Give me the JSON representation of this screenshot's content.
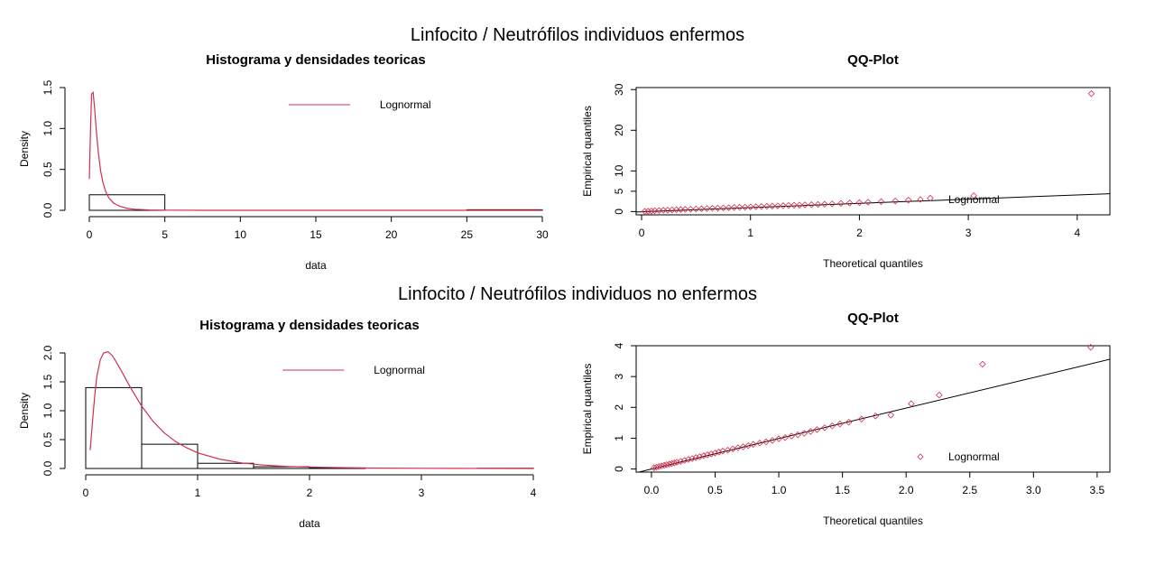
{
  "figure": {
    "suptitle_top": "Linfocito / Neutrófilos individuos enfermos",
    "suptitle_bottom": "Linfocito / Neutrófilos individuos no enfermos",
    "colors": {
      "density": "#d03050",
      "qq_points": "#d03050",
      "axes": "#000000",
      "background": "#ffffff"
    }
  },
  "chart_data": [
    {
      "id": "hist_enfermos",
      "type": "bar",
      "title": "Histograma y densidades teoricas",
      "xlabel": "data",
      "ylabel": "Density",
      "xlim": [
        0,
        30
      ],
      "ylim": [
        0,
        1.5
      ],
      "xticks": [
        0,
        5,
        10,
        15,
        20,
        25,
        30
      ],
      "yticks": [
        0.0,
        0.5,
        1.0,
        1.5
      ],
      "ytick_labels": [
        "0.0",
        "0.5",
        "1.0",
        "1.5"
      ],
      "bins": [
        {
          "x0": 0,
          "x1": 5,
          "density": 0.19
        },
        {
          "x0": 5,
          "x1": 10,
          "density": 0.0
        },
        {
          "x0": 10,
          "x1": 15,
          "density": 0.0
        },
        {
          "x0": 15,
          "x1": 20,
          "density": 0.0
        },
        {
          "x0": 20,
          "x1": 25,
          "density": 0.0
        },
        {
          "x0": 25,
          "x1": 30,
          "density": 0.007
        }
      ],
      "density_curve": {
        "name": "Lognormal",
        "x": [
          0.0,
          0.08,
          0.15,
          0.25,
          0.35,
          0.45,
          0.6,
          0.75,
          0.9,
          1.1,
          1.3,
          1.6,
          2.0,
          2.5,
          3.0,
          4.0,
          5.0,
          8.0,
          12.0,
          20.0,
          30.0
        ],
        "y": [
          0.38,
          1.0,
          1.42,
          1.44,
          1.25,
          1.0,
          0.7,
          0.48,
          0.34,
          0.22,
          0.15,
          0.09,
          0.05,
          0.025,
          0.013,
          0.005,
          0.002,
          0.0003,
          0.0,
          0.0,
          0.0
        ]
      },
      "legend": {
        "entries": [
          "Lognormal"
        ],
        "position": "top-right"
      }
    },
    {
      "id": "qq_enfermos",
      "type": "scatter",
      "title": "QQ-Plot",
      "xlabel": "Theoretical quantiles",
      "ylabel": "Empirical quantiles",
      "xlim": [
        -0.05,
        4.3
      ],
      "ylim": [
        -0.8,
        30.5
      ],
      "xticks": [
        0,
        1,
        2,
        3,
        4
      ],
      "yticks": [
        0,
        5,
        10,
        20,
        30
      ],
      "line": {
        "x": [
          -0.05,
          4.3
        ],
        "y": [
          -0.1,
          4.4
        ]
      },
      "points": {
        "x": [
          0.03,
          0.06,
          0.09,
          0.12,
          0.16,
          0.2,
          0.24,
          0.28,
          0.32,
          0.36,
          0.4,
          0.45,
          0.5,
          0.55,
          0.6,
          0.65,
          0.7,
          0.75,
          0.8,
          0.85,
          0.9,
          0.95,
          1.0,
          1.05,
          1.1,
          1.15,
          1.2,
          1.25,
          1.3,
          1.35,
          1.4,
          1.45,
          1.5,
          1.56,
          1.62,
          1.68,
          1.75,
          1.83,
          1.91,
          2.0,
          2.08,
          2.2,
          2.33,
          2.45,
          2.65,
          3.05,
          4.13
        ],
        "y": [
          0.05,
          0.1,
          0.15,
          0.2,
          0.25,
          0.3,
          0.35,
          0.4,
          0.45,
          0.5,
          0.55,
          0.6,
          0.65,
          0.7,
          0.75,
          0.8,
          0.85,
          0.9,
          0.95,
          1.0,
          1.05,
          1.1,
          1.15,
          1.2,
          1.25,
          1.3,
          1.35,
          1.4,
          1.45,
          1.5,
          1.55,
          1.6,
          1.65,
          1.7,
          1.75,
          1.8,
          1.9,
          2.0,
          2.1,
          2.2,
          2.3,
          2.45,
          2.6,
          2.8,
          3.3,
          3.9,
          29.0
        ]
      },
      "legend": {
        "entries": [
          "Lognormal"
        ],
        "position": "bottom-right"
      }
    },
    {
      "id": "hist_no_enfermos",
      "type": "bar",
      "title": "Histograma y densidades teoricas",
      "xlabel": "data",
      "ylabel": "Density",
      "xlim": [
        0,
        4
      ],
      "ylim": [
        0,
        2.0
      ],
      "xticks": [
        0,
        1,
        2,
        3,
        4
      ],
      "yticks": [
        0.0,
        0.5,
        1.0,
        1.5,
        2.0
      ],
      "ytick_labels": [
        "0.0",
        "0.5",
        "1.0",
        "1.5",
        "2.0"
      ],
      "bins": [
        {
          "x0": 0,
          "x1": 0.5,
          "density": 1.4
        },
        {
          "x0": 0.5,
          "x1": 1.0,
          "density": 0.42
        },
        {
          "x0": 1.0,
          "x1": 1.5,
          "density": 0.09
        },
        {
          "x0": 1.5,
          "x1": 2.0,
          "density": 0.03
        },
        {
          "x0": 2.0,
          "x1": 2.5,
          "density": 0.01
        },
        {
          "x0": 2.5,
          "x1": 3.0,
          "density": 0.0
        },
        {
          "x0": 3.0,
          "x1": 3.5,
          "density": 0.0
        },
        {
          "x0": 3.5,
          "x1": 4.0,
          "density": 0.004
        }
      ],
      "density_curve": {
        "name": "Lognormal",
        "x": [
          0.04,
          0.06,
          0.08,
          0.1,
          0.13,
          0.16,
          0.2,
          0.24,
          0.28,
          0.33,
          0.4,
          0.5,
          0.6,
          0.7,
          0.8,
          0.9,
          1.0,
          1.2,
          1.4,
          1.6,
          1.8,
          2.0,
          2.5,
          3.0,
          3.5,
          4.0
        ],
        "y": [
          0.32,
          0.8,
          1.25,
          1.6,
          1.88,
          2.0,
          2.02,
          1.95,
          1.82,
          1.65,
          1.4,
          1.08,
          0.82,
          0.62,
          0.47,
          0.36,
          0.27,
          0.16,
          0.095,
          0.058,
          0.036,
          0.023,
          0.008,
          0.003,
          0.001,
          0.0
        ]
      },
      "legend": {
        "entries": [
          "Lognormal"
        ],
        "position": "top-right"
      }
    },
    {
      "id": "qq_no_enfermos",
      "type": "scatter",
      "title": "QQ-Plot",
      "xlabel": "Theoretical quantiles",
      "ylabel": "Empirical quantiles",
      "xlim": [
        -0.12,
        3.6
      ],
      "ylim": [
        -0.1,
        4.0
      ],
      "xticks": [
        0.0,
        0.5,
        1.0,
        1.5,
        2.0,
        2.5,
        3.0,
        3.5
      ],
      "xtick_labels": [
        "0.0",
        "0.5",
        "1.0",
        "1.5",
        "2.0",
        "2.5",
        "3.0",
        "3.5"
      ],
      "yticks": [
        0,
        1,
        2,
        3,
        4
      ],
      "line": {
        "x": [
          -0.12,
          3.6
        ],
        "y": [
          -0.12,
          3.56
        ]
      },
      "points": {
        "x": [
          0.02,
          0.04,
          0.06,
          0.08,
          0.1,
          0.12,
          0.14,
          0.16,
          0.18,
          0.2,
          0.23,
          0.26,
          0.29,
          0.32,
          0.35,
          0.38,
          0.41,
          0.44,
          0.47,
          0.5,
          0.53,
          0.56,
          0.6,
          0.64,
          0.68,
          0.72,
          0.76,
          0.8,
          0.85,
          0.9,
          0.95,
          1.0,
          1.05,
          1.1,
          1.15,
          1.2,
          1.25,
          1.3,
          1.36,
          1.42,
          1.48,
          1.55,
          1.65,
          1.76,
          1.88,
          2.04,
          2.26,
          2.6,
          3.45
        ],
        "y": [
          0.04,
          0.06,
          0.08,
          0.1,
          0.12,
          0.14,
          0.16,
          0.18,
          0.2,
          0.22,
          0.25,
          0.28,
          0.31,
          0.34,
          0.37,
          0.4,
          0.43,
          0.46,
          0.49,
          0.52,
          0.55,
          0.58,
          0.61,
          0.65,
          0.69,
          0.72,
          0.76,
          0.8,
          0.84,
          0.88,
          0.93,
          0.98,
          1.02,
          1.07,
          1.11,
          1.16,
          1.22,
          1.28,
          1.34,
          1.4,
          1.46,
          1.52,
          1.62,
          1.72,
          1.75,
          2.12,
          2.4,
          3.4,
          3.95
        ]
      },
      "legend": {
        "entries": [
          "Lognormal"
        ],
        "position": "bottom-right"
      }
    }
  ]
}
